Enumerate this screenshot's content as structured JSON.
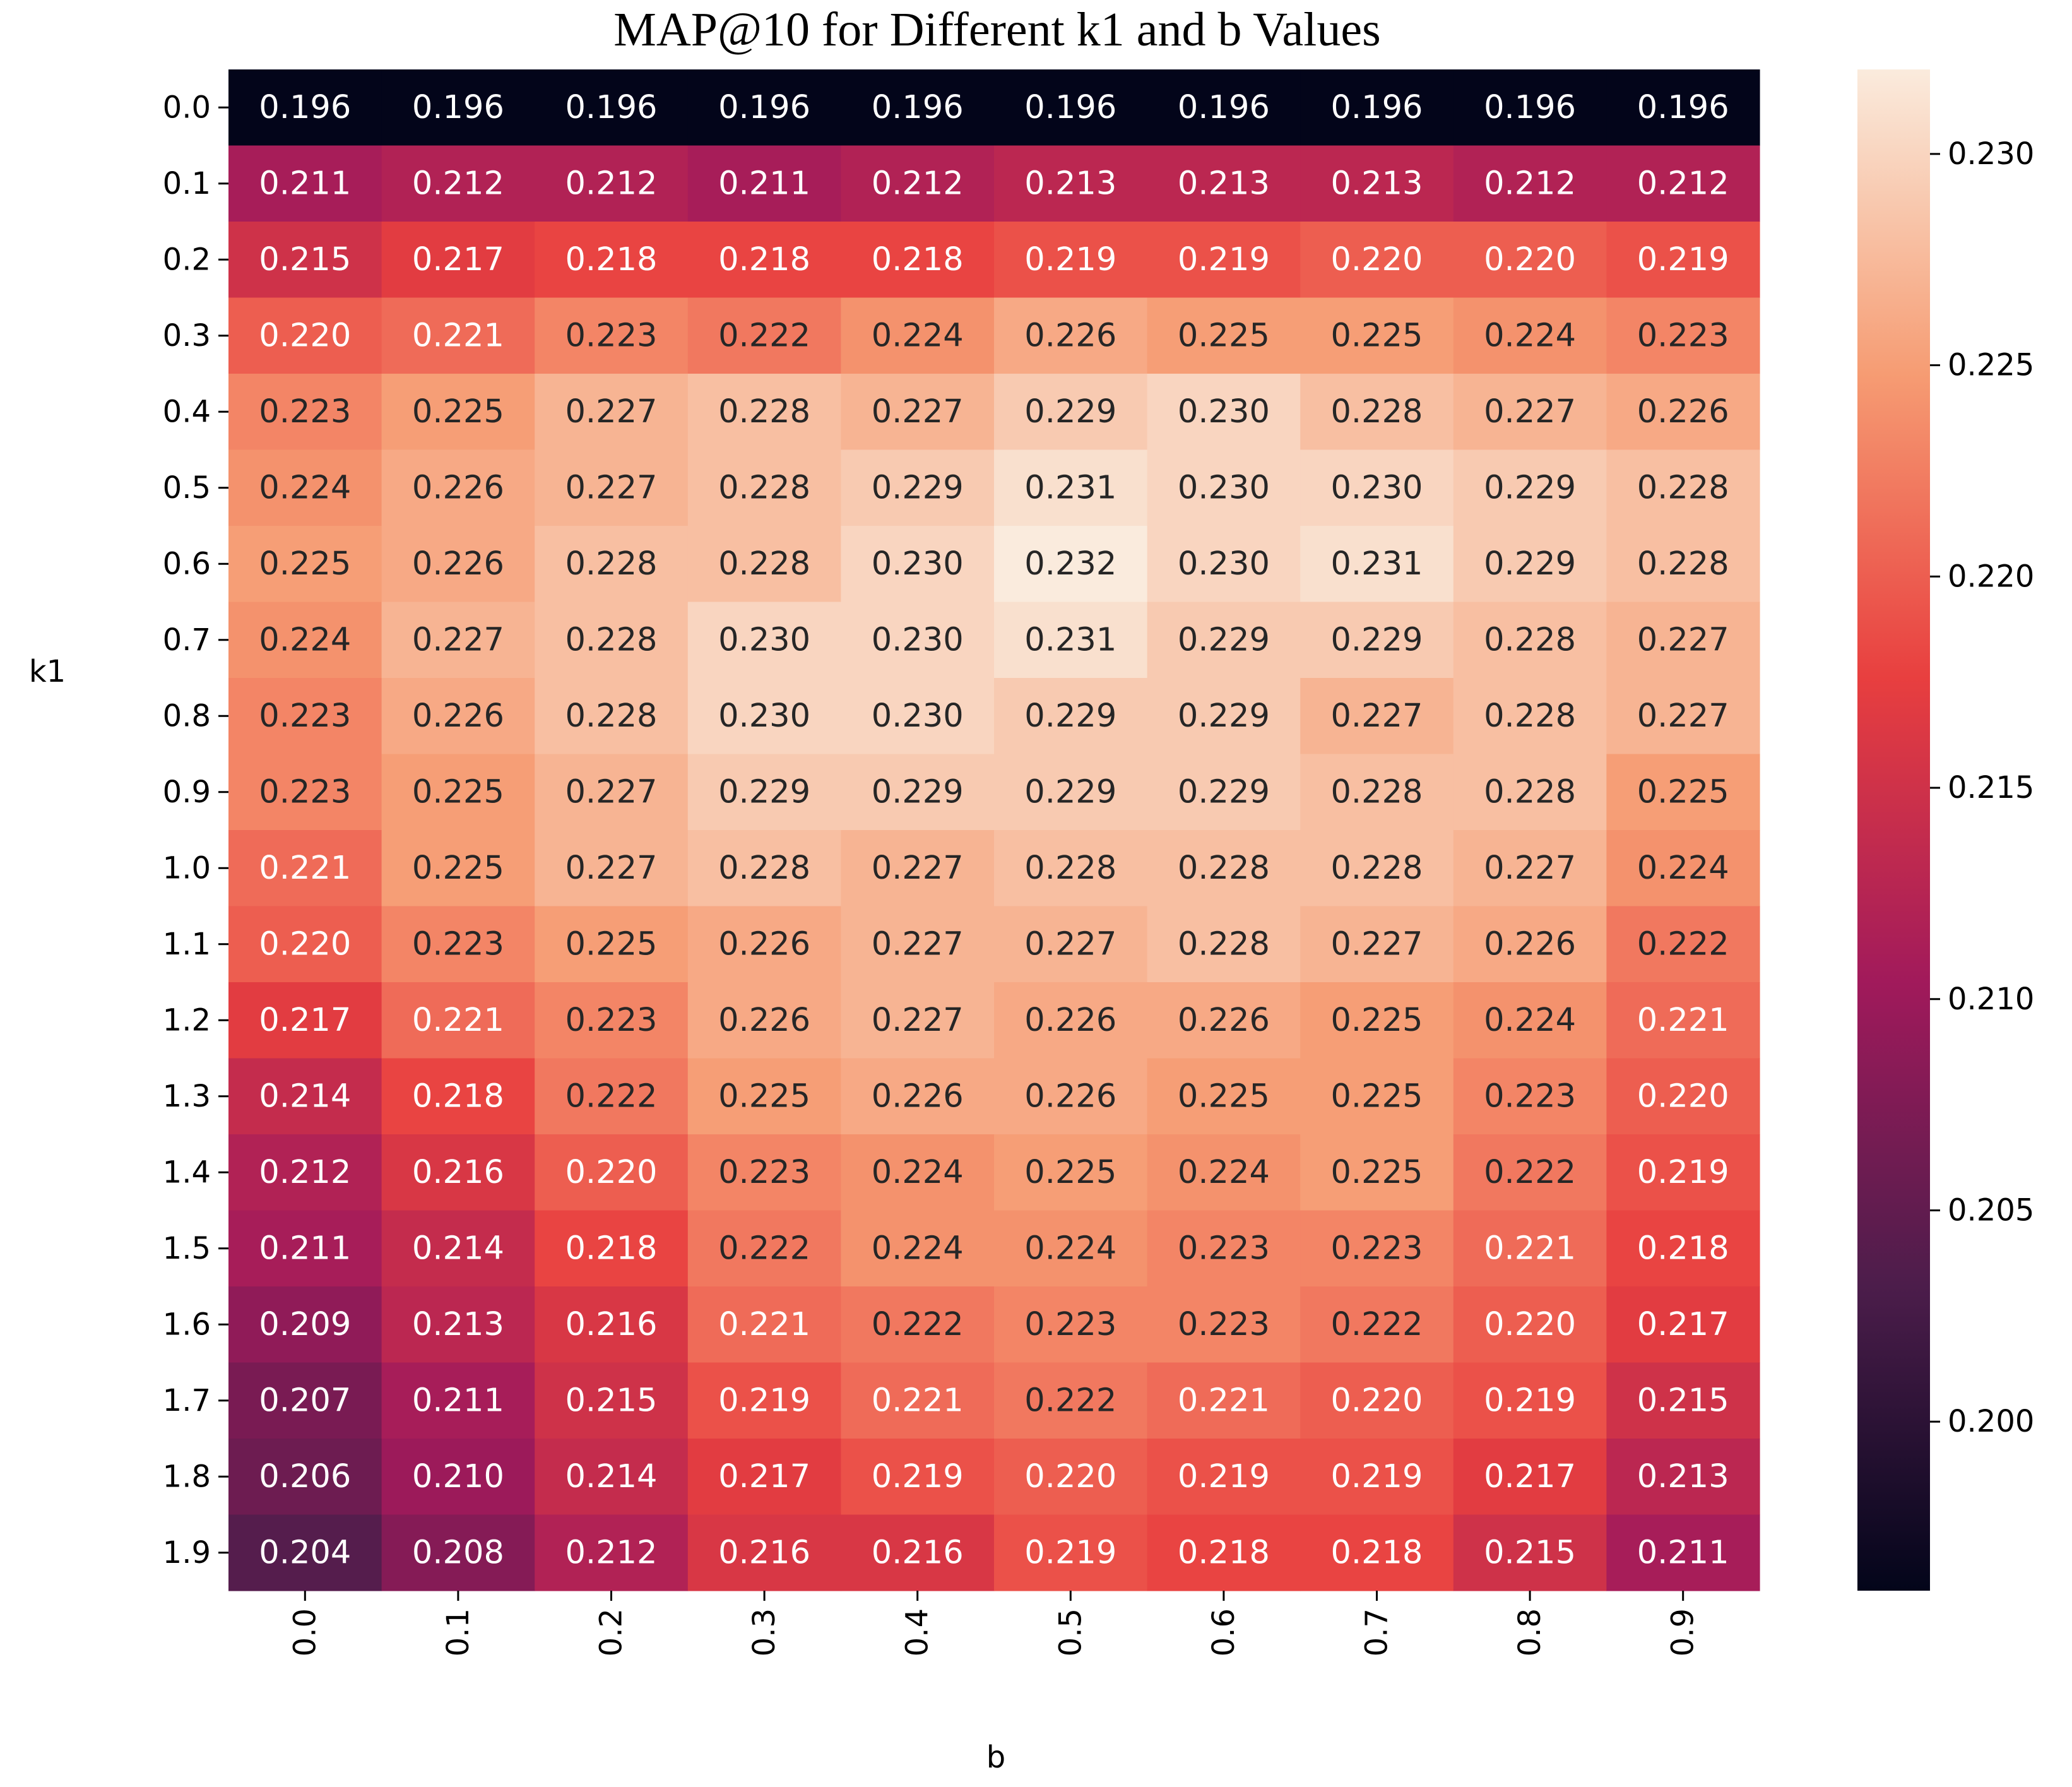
{
  "chart_data": {
    "type": "heatmap",
    "title": "MAP@10 for Different k1 and b Values",
    "xlabel": "b",
    "ylabel": "k1",
    "x_categories": [
      "0.0",
      "0.1",
      "0.2",
      "0.3",
      "0.4",
      "0.5",
      "0.6",
      "0.7",
      "0.8",
      "0.9"
    ],
    "y_categories": [
      "0.0",
      "0.1",
      "0.2",
      "0.3",
      "0.4",
      "0.5",
      "0.6",
      "0.7",
      "0.8",
      "0.9",
      "1.0",
      "1.1",
      "1.2",
      "1.3",
      "1.4",
      "1.5",
      "1.6",
      "1.7",
      "1.8",
      "1.9"
    ],
    "values": [
      [
        0.196,
        0.196,
        0.196,
        0.196,
        0.196,
        0.196,
        0.196,
        0.196,
        0.196,
        0.196
      ],
      [
        0.211,
        0.212,
        0.212,
        0.211,
        0.212,
        0.213,
        0.213,
        0.213,
        0.212,
        0.212
      ],
      [
        0.215,
        0.217,
        0.218,
        0.218,
        0.218,
        0.219,
        0.219,
        0.22,
        0.22,
        0.219
      ],
      [
        0.22,
        0.221,
        0.223,
        0.222,
        0.224,
        0.226,
        0.225,
        0.225,
        0.224,
        0.223
      ],
      [
        0.223,
        0.225,
        0.227,
        0.228,
        0.227,
        0.229,
        0.23,
        0.228,
        0.227,
        0.226
      ],
      [
        0.224,
        0.226,
        0.227,
        0.228,
        0.229,
        0.231,
        0.23,
        0.23,
        0.229,
        0.228
      ],
      [
        0.225,
        0.226,
        0.228,
        0.228,
        0.23,
        0.232,
        0.23,
        0.231,
        0.229,
        0.228
      ],
      [
        0.224,
        0.227,
        0.228,
        0.23,
        0.23,
        0.231,
        0.229,
        0.229,
        0.228,
        0.227
      ],
      [
        0.223,
        0.226,
        0.228,
        0.23,
        0.23,
        0.229,
        0.229,
        0.227,
        0.228,
        0.227
      ],
      [
        0.223,
        0.225,
        0.227,
        0.229,
        0.229,
        0.229,
        0.229,
        0.228,
        0.228,
        0.225
      ],
      [
        0.221,
        0.225,
        0.227,
        0.228,
        0.227,
        0.228,
        0.228,
        0.228,
        0.227,
        0.224
      ],
      [
        0.22,
        0.223,
        0.225,
        0.226,
        0.227,
        0.227,
        0.228,
        0.227,
        0.226,
        0.222
      ],
      [
        0.217,
        0.221,
        0.223,
        0.226,
        0.227,
        0.226,
        0.226,
        0.225,
        0.224,
        0.221
      ],
      [
        0.214,
        0.218,
        0.222,
        0.225,
        0.226,
        0.226,
        0.225,
        0.225,
        0.223,
        0.22
      ],
      [
        0.212,
        0.216,
        0.22,
        0.223,
        0.224,
        0.225,
        0.224,
        0.225,
        0.222,
        0.219
      ],
      [
        0.211,
        0.214,
        0.218,
        0.222,
        0.224,
        0.224,
        0.223,
        0.223,
        0.221,
        0.218
      ],
      [
        0.209,
        0.213,
        0.216,
        0.221,
        0.222,
        0.223,
        0.223,
        0.222,
        0.22,
        0.217
      ],
      [
        0.207,
        0.211,
        0.215,
        0.219,
        0.221,
        0.222,
        0.221,
        0.22,
        0.219,
        0.215
      ],
      [
        0.206,
        0.21,
        0.214,
        0.217,
        0.219,
        0.22,
        0.219,
        0.219,
        0.217,
        0.213
      ],
      [
        0.204,
        0.208,
        0.212,
        0.216,
        0.216,
        0.219,
        0.218,
        0.218,
        0.215,
        0.211
      ]
    ],
    "colorbar": {
      "range": [
        0.196,
        0.232
      ],
      "ticks": [
        "0.200",
        "0.205",
        "0.210",
        "0.215",
        "0.220",
        "0.225",
        "0.230"
      ],
      "colormap": "rocket"
    },
    "colormap_stops": [
      "#03051a",
      "#4c1d4b",
      "#a11a5b",
      "#e83f3f",
      "#f69c73",
      "#faebdd"
    ],
    "value_format_decimals": 3
  }
}
